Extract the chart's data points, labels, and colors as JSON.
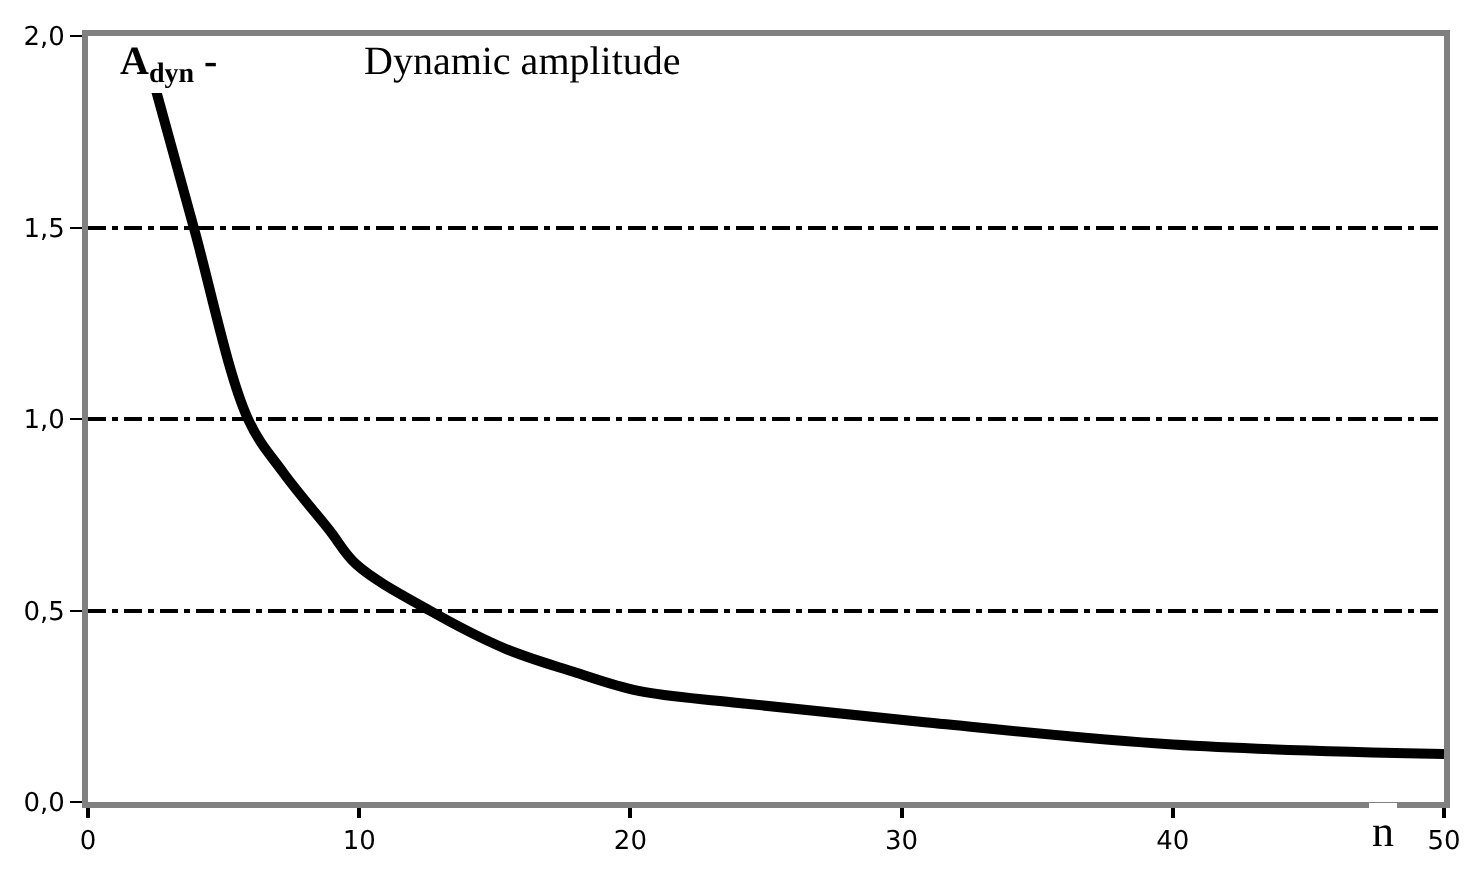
{
  "chart_data": {
    "type": "line",
    "title": "Dynamic amplitude",
    "ylabel": "A$_{dyn}$ -",
    "xlabel": "n",
    "x": [
      2.5,
      3.9,
      5.9,
      7.2,
      8.9,
      9.9,
      12.6,
      15.4,
      17.9,
      20.3,
      23.8,
      30.6,
      40,
      50
    ],
    "series": [
      {
        "color": "#000000",
        "values": [
          1.86,
          1.5,
          1.0,
          0.86,
          0.71,
          0.62,
          0.5,
          0.4,
          0.34,
          0.29,
          0.26,
          0.21,
          0.15,
          0.125
        ]
      }
    ],
    "xlim": [
      0,
      50
    ],
    "xticks": [
      0,
      10,
      20,
      30,
      40,
      50
    ],
    "ylim": [
      0,
      2
    ],
    "yticks": [
      {
        "value": 0,
        "label": "0,0"
      },
      {
        "value": 0.5,
        "label": "0,5"
      },
      {
        "value": 1,
        "label": "1,0"
      },
      {
        "value": 1.5,
        "label": "1,5"
      },
      {
        "value": 2,
        "label": "2,0"
      }
    ],
    "grid": "y",
    "legend": false,
    "marker": "none",
    "line_style": "solid"
  }
}
